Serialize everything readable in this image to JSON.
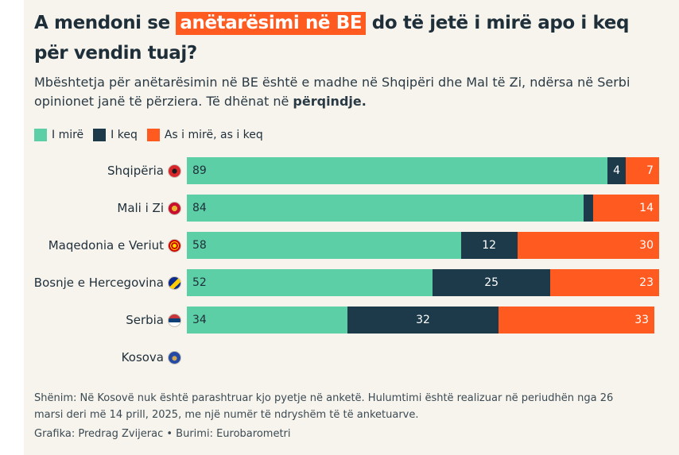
{
  "title": {
    "part1": "A mendoni se ",
    "highlight": "anëtarësimi në BE",
    "part2": " do të jetë i mirë apo i keq për vendin tuaj?"
  },
  "subtitle": {
    "text": "Mbështetja për anëtarësimin në BE është e madhe në Shqipëri dhe Mal të Zi, ndërsa në Serbi opinionet janë të përziera. Të dhënat në ",
    "bold": "përqindje."
  },
  "colors": {
    "good": "#5ccfa6",
    "bad": "#1c3a4a",
    "mixed": "#ff5a1f",
    "panel": "#f7f4ee"
  },
  "chart_data": {
    "type": "bar",
    "orientation": "horizontal",
    "stacked": true,
    "unit": "percent",
    "categories": [
      "Shqipëria",
      "Mali i Zi",
      "Maqedonia e Veriut",
      "Bosnje e Hercegovina",
      "Serbia",
      "Kosova"
    ],
    "category_icons": [
      "albania-flag-icon",
      "montenegro-flag-icon",
      "north-macedonia-flag-icon",
      "bosnia-flag-icon",
      "serbia-flag-icon",
      "kosovo-flag-icon"
    ],
    "series": [
      {
        "name": "I mirë",
        "color": "#5ccfa6",
        "values": [
          89,
          84,
          58,
          52,
          34,
          null
        ]
      },
      {
        "name": "I keq",
        "color": "#1c3a4a",
        "values": [
          4,
          2,
          12,
          25,
          32,
          null
        ]
      },
      {
        "name": "As i mirë, as i keq",
        "color": "#ff5a1f",
        "values": [
          7,
          14,
          30,
          23,
          33,
          null
        ]
      }
    ],
    "data_labels": [
      [
        "89",
        "4",
        "7"
      ],
      [
        "84",
        "",
        "14"
      ],
      [
        "58",
        "12",
        "30"
      ],
      [
        "52",
        "25",
        "23"
      ],
      [
        "34",
        "32",
        "33"
      ],
      [
        "",
        "",
        ""
      ]
    ],
    "xlim": [
      0,
      100
    ],
    "legend_position": "top-left"
  },
  "footnote": "Shënim: Në Kosovë nuk është parashtruar kjo pyetje në anketë. Hulumtimi është realizuar në periudhën nga 26 marsi deri më 14 prill, 2025, me një numër të ndryshëm të të anketuarve.",
  "credit": "Grafika: Predrag Zvijerac • Burimi: Eurobarometri"
}
